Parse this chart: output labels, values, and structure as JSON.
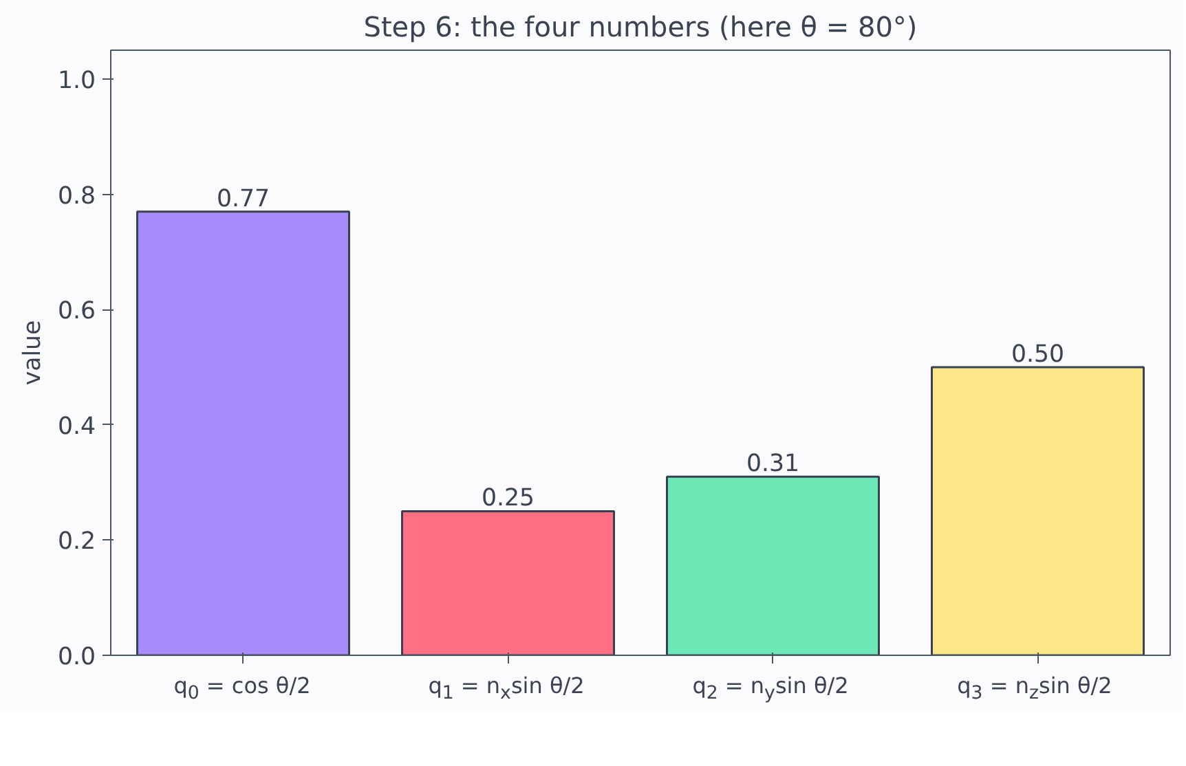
{
  "chart_data": {
    "type": "bar",
    "title": "Step 6: the four numbers (here θ = 80°)",
    "ylabel": "value",
    "categories": [
      "q$_{0}$ = cos θ/2",
      "q$_{1}$ = n$_{x}$sin θ/2",
      "q$_{2}$ = n$_{y}$sin θ/2",
      "q$_{3}$ = n$_{z}$sin θ/2"
    ],
    "values": [
      0.77,
      0.25,
      0.31,
      0.5
    ],
    "value_labels": [
      "0.77",
      "0.25",
      "0.31",
      "0.50"
    ],
    "colors": [
      "#a78bfa",
      "#ff7085",
      "#6ee7b7",
      "#fde68a"
    ],
    "ylim": [
      0,
      1.05
    ],
    "yticks": [
      {
        "value": 0,
        "label": "0.0"
      },
      {
        "value": 0.2,
        "label": "0.2"
      },
      {
        "value": 0.4,
        "label": "0.4"
      },
      {
        "value": 0.6,
        "label": "0.6"
      },
      {
        "value": 0.8,
        "label": "0.8"
      },
      {
        "value": 1.0,
        "label": "1.0"
      }
    ],
    "grid": false
  }
}
